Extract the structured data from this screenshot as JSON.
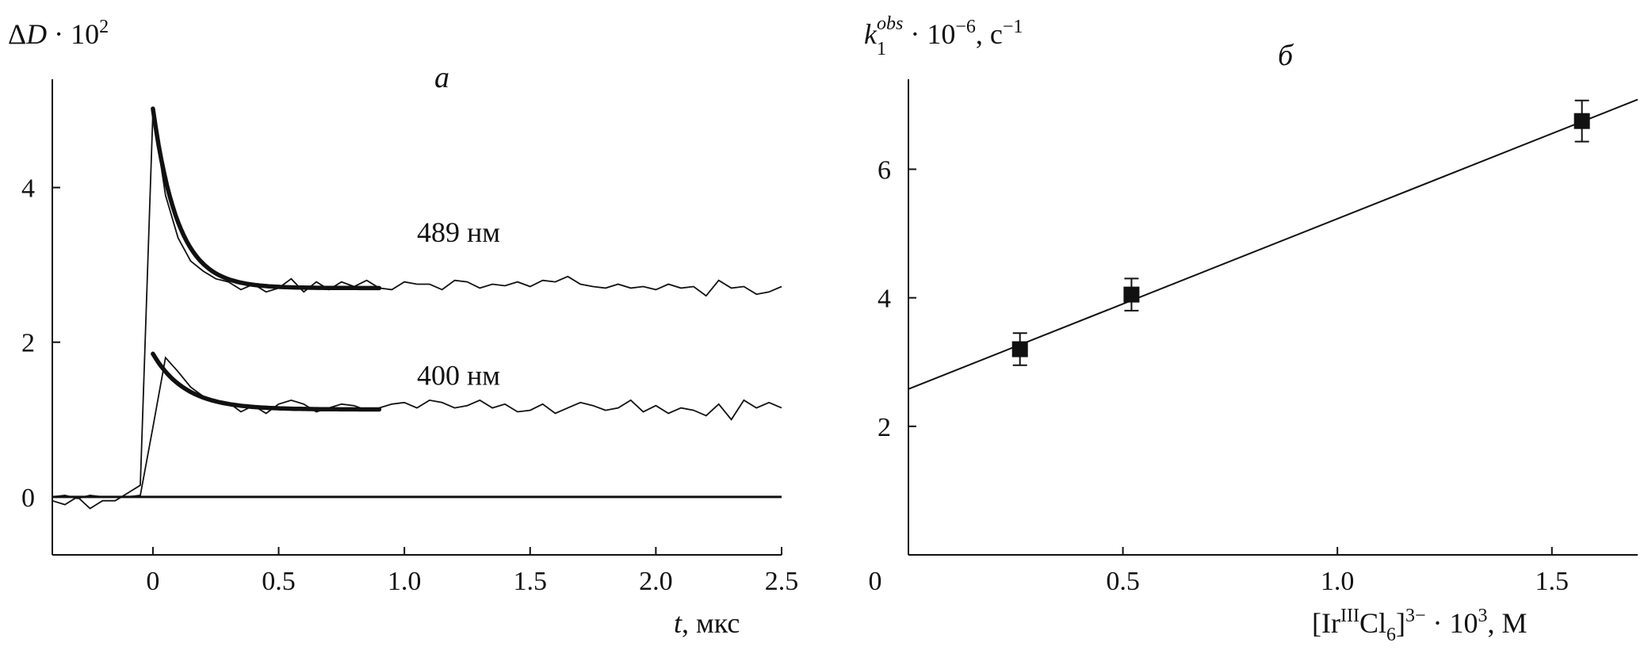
{
  "chart_data": [
    {
      "type": "line",
      "panel_label": "a",
      "title": "",
      "ylabel": "ΔD · 10²",
      "xlabel_var": "t",
      "xlabel_unit": ", мкс",
      "xlim": [
        -0.4,
        2.5
      ],
      "ylim": [
        -0.75,
        5.4
      ],
      "x_ticks": [
        0,
        0.5,
        1.0,
        1.5,
        2.0,
        2.5
      ],
      "x_tick_labels": [
        "0",
        "0.5",
        "1.0",
        "1.5",
        "2.0",
        "2.5"
      ],
      "y_ticks": [
        0,
        2,
        4
      ],
      "y_tick_labels": [
        "0",
        "2",
        "4"
      ],
      "zero_line": true,
      "series": [
        {
          "name": "489 нм",
          "kind": "signal",
          "x": [
            -0.4,
            -0.35,
            -0.3,
            -0.25,
            -0.2,
            -0.15,
            -0.1,
            -0.05,
            0,
            0.05,
            0.1,
            0.15,
            0.2,
            0.25,
            0.3,
            0.35,
            0.4,
            0.45,
            0.5,
            0.55,
            0.6,
            0.65,
            0.7,
            0.75,
            0.8,
            0.85,
            0.9,
            0.95,
            1.0,
            1.05,
            1.1,
            1.15,
            1.2,
            1.25,
            1.3,
            1.35,
            1.4,
            1.45,
            1.5,
            1.55,
            1.6,
            1.65,
            1.7,
            1.75,
            1.8,
            1.85,
            1.9,
            1.95,
            2.0,
            2.05,
            2.1,
            2.15,
            2.2,
            2.25,
            2.3,
            2.35,
            2.4,
            2.45,
            2.5
          ],
          "y": [
            -0.05,
            -0.1,
            0.0,
            -0.15,
            -0.05,
            -0.05,
            0.05,
            0.15,
            4.98,
            3.9,
            3.35,
            3.05,
            2.92,
            2.82,
            2.78,
            2.68,
            2.75,
            2.65,
            2.7,
            2.82,
            2.65,
            2.78,
            2.68,
            2.78,
            2.72,
            2.8,
            2.7,
            2.68,
            2.78,
            2.75,
            2.75,
            2.68,
            2.8,
            2.78,
            2.7,
            2.75,
            2.73,
            2.78,
            2.72,
            2.8,
            2.78,
            2.85,
            2.75,
            2.72,
            2.7,
            2.75,
            2.7,
            2.72,
            2.68,
            2.75,
            2.7,
            2.72,
            2.6,
            2.8,
            2.7,
            2.72,
            2.62,
            2.65,
            2.72
          ]
        },
        {
          "name": "400 нм",
          "kind": "signal",
          "x": [
            -0.4,
            -0.35,
            -0.3,
            -0.25,
            -0.2,
            -0.15,
            -0.1,
            -0.05,
            0,
            0.05,
            0.1,
            0.15,
            0.2,
            0.25,
            0.3,
            0.35,
            0.4,
            0.45,
            0.5,
            0.55,
            0.6,
            0.65,
            0.7,
            0.75,
            0.8,
            0.85,
            0.9,
            0.95,
            1.0,
            1.05,
            1.1,
            1.15,
            1.2,
            1.25,
            1.3,
            1.35,
            1.4,
            1.45,
            1.5,
            1.55,
            1.6,
            1.65,
            1.7,
            1.75,
            1.8,
            1.85,
            1.9,
            1.95,
            2.0,
            2.05,
            2.1,
            2.15,
            2.2,
            2.25,
            2.3,
            2.35,
            2.4,
            2.45,
            2.5
          ],
          "y": [
            0.0,
            0.02,
            -0.02,
            0.02,
            0.0,
            0.0,
            0.0,
            0.02,
            0.9,
            1.8,
            1.62,
            1.42,
            1.3,
            1.25,
            1.22,
            1.1,
            1.18,
            1.08,
            1.2,
            1.25,
            1.2,
            1.1,
            1.15,
            1.2,
            1.18,
            1.12,
            1.15,
            1.2,
            1.22,
            1.15,
            1.25,
            1.22,
            1.15,
            1.18,
            1.25,
            1.15,
            1.2,
            1.1,
            1.12,
            1.2,
            1.08,
            1.15,
            1.22,
            1.18,
            1.12,
            1.15,
            1.25,
            1.1,
            1.18,
            1.08,
            1.15,
            1.12,
            1.05,
            1.2,
            1.0,
            1.25,
            1.15,
            1.22,
            1.15
          ]
        },
        {
          "name": "fit 489",
          "kind": "fit",
          "x_start": 0.0,
          "x_end": 0.9,
          "y_inf": 2.7,
          "amplitude": 2.32,
          "tau": 0.1
        },
        {
          "name": "fit 400",
          "kind": "fit",
          "x_start": 0.0,
          "x_end": 0.9,
          "y_inf": 1.13,
          "amplitude": 0.72,
          "tau": 0.13
        }
      ],
      "annotations": [
        {
          "text": "489 нм",
          "x": 1.05,
          "y": 3.3
        },
        {
          "text": "400 нм",
          "x": 1.05,
          "y": 1.45
        }
      ]
    },
    {
      "type": "scatter",
      "panel_label": "б",
      "title": "",
      "ylabel": "k₁obs · 10⁻⁶, с⁻¹",
      "xlabel": "[IrIIICl6]3− · 10³, М",
      "xlim": [
        0,
        1.7
      ],
      "ylim": [
        0,
        7.4
      ],
      "x_ticks": [
        0,
        0.5,
        1.0,
        1.5
      ],
      "x_tick_labels": [
        "0",
        "0.5",
        "1.0",
        "1.5"
      ],
      "y_ticks": [
        2,
        4,
        6
      ],
      "y_tick_labels": [
        "2",
        "4",
        "6"
      ],
      "points": [
        {
          "x": 0.26,
          "y": 3.2,
          "err": 0.25
        },
        {
          "x": 0.52,
          "y": 4.05,
          "err": 0.25
        },
        {
          "x": 1.57,
          "y": 6.75,
          "err": 0.32
        }
      ],
      "fit_line": {
        "slope": 2.65,
        "intercept": 2.58,
        "x_start": 0.0,
        "x_end": 1.7
      }
    }
  ]
}
